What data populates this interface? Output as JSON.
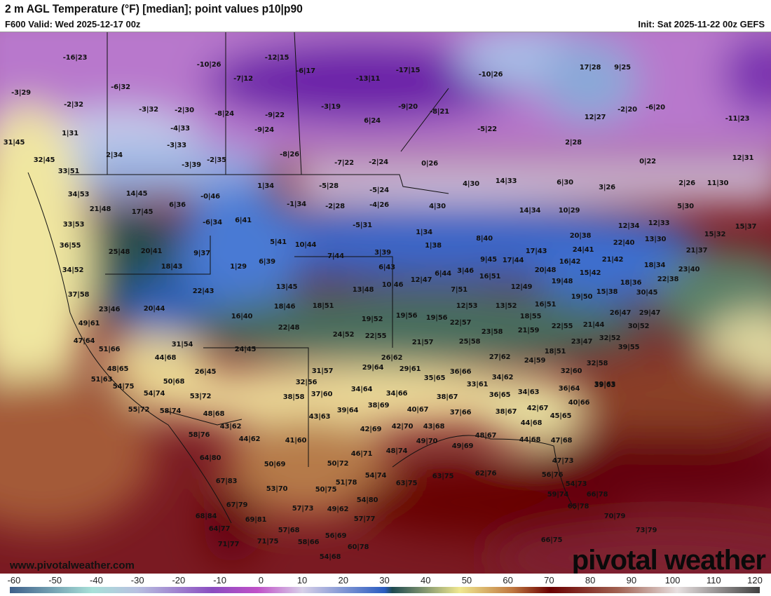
{
  "header": {
    "title": "2 m AGL Temperature (°F) [median]; point values p10|p90",
    "valid": "F600 Valid: Wed 2025-12-17 00z",
    "init": "Init: Sat 2025-11-22 00z GEFS"
  },
  "watermark": {
    "url": "www.pivotalweather.com",
    "logo": "pivotal weather"
  },
  "colorbar": {
    "ticks": [
      "-60",
      "-50",
      "-40",
      "-30",
      "-20",
      "-10",
      "0",
      "10",
      "20",
      "30",
      "40",
      "50",
      "60",
      "70",
      "80",
      "90",
      "100",
      "110",
      "120"
    ],
    "range": [
      -60,
      120
    ],
    "colors": [
      "#3e5f8a",
      "#a8e0d8",
      "#b8c0e0",
      "#8a4cc0",
      "#c050c8",
      "#d8d0e8",
      "#2a5cc0",
      "#1e4a50",
      "#f0e890",
      "#c07840",
      "#6a0000",
      "#a06050",
      "#e8e0e0",
      "#404040"
    ]
  },
  "point_values": [
    "-16|23",
    "-10|26",
    "-7|12",
    "-3|29",
    "-6|32",
    "-2|32",
    "-3|32",
    "-2|30",
    "-8|24",
    "1|31",
    "-4|33",
    "-3|33",
    "31|45",
    "2|34",
    "-3|39",
    "-2|35",
    "32|45",
    "33|51",
    "34|53",
    "14|45",
    "-0|46",
    "6|36",
    "21|48",
    "17|45",
    "-12|15",
    "-6|17",
    "-17|15",
    "-13|11",
    "-10|26",
    "-3|19",
    "-9|20",
    "-8|21",
    "-9|22",
    "6|24",
    "-9|24",
    "-5|22",
    "-8|26",
    "-7|22",
    "-2|24",
    "0|26",
    "1|34",
    "-5|28",
    "-5|24",
    "-1|34",
    "-2|28",
    "-4|26",
    "4|30",
    "4|30",
    "17|28",
    "9|25",
    "12|27",
    "-2|20",
    "-6|20",
    "-11|23",
    "2|28",
    "0|22",
    "12|31",
    "6|30",
    "3|26",
    "2|26",
    "11|30",
    "14|33",
    "10|29",
    "5|30",
    "14|34",
    "33|53",
    "36|55",
    "25|48",
    "20|41",
    "9|37",
    "18|43",
    "1|29",
    "34|52",
    "37|58",
    "22|43",
    "23|46",
    "20|44",
    "16|40",
    "49|61",
    "47|64",
    "51|66",
    "31|54",
    "24|45",
    "44|68",
    "48|65",
    "26|45",
    "51|63",
    "50|68",
    "6|41",
    "-6|34",
    "-5|31",
    "5|41",
    "10|44",
    "1|34",
    "8|40",
    "6|39",
    "7|44",
    "3|39",
    "1|38",
    "9|45",
    "17|43",
    "6|43",
    "17|44",
    "12|47",
    "6|44",
    "3|46",
    "16|51",
    "13|45",
    "13|48",
    "10|46",
    "7|51",
    "18|46",
    "18|51",
    "12|53",
    "13|52",
    "19|52",
    "19|56",
    "19|56",
    "22|57",
    "22|48",
    "24|52",
    "22|55",
    "23|58",
    "21|57",
    "25|58",
    "26|62",
    "27|62",
    "29|64",
    "29|61",
    "31|57",
    "36|66",
    "35|65",
    "34|62",
    "32|56",
    "33|61",
    "20|38",
    "22|40",
    "12|34",
    "12|33",
    "13|30",
    "15|32",
    "15|37",
    "24|41",
    "21|42",
    "16|42",
    "20|48",
    "21|37",
    "18|34",
    "23|40",
    "15|42",
    "19|48",
    "22|38",
    "18|36",
    "15|38",
    "30|45",
    "12|49",
    "19|50",
    "16|51",
    "18|55",
    "26|47",
    "29|47",
    "21|59",
    "22|55",
    "21|44",
    "30|52",
    "32|52",
    "23|47",
    "39|55",
    "18|51",
    "24|59",
    "32|58",
    "32|60",
    "39|63",
    "54|75",
    "54|74",
    "53|72",
    "55|72",
    "58|74",
    "48|68",
    "43|62",
    "58|76",
    "44|62",
    "64|80",
    "67|83",
    "67|79",
    "68|84",
    "69|81",
    "64|77",
    "71|77",
    "38|58",
    "37|60",
    "34|64",
    "34|66",
    "38|69",
    "38|67",
    "39|64",
    "40|67",
    "43|63",
    "42|69",
    "42|70",
    "43|68",
    "41|60",
    "46|71",
    "48|74",
    "49|70",
    "48|67",
    "49|69",
    "50|69",
    "50|72",
    "63|75",
    "63|75",
    "62|76",
    "54|74",
    "51|78",
    "53|70",
    "50|75",
    "54|80",
    "57|73",
    "49|62",
    "57|77",
    "57|68",
    "56|69",
    "71|75",
    "58|66",
    "60|78",
    "54|68",
    "36|64",
    "39|63",
    "34|63",
    "37|66",
    "36|65",
    "40|66",
    "42|67",
    "38|67",
    "45|65",
    "44|68",
    "44|68",
    "47|68",
    "47|73",
    "56|76",
    "54|73",
    "59|74",
    "66|78",
    "65|78",
    "70|79",
    "73|79",
    "66|75"
  ]
}
